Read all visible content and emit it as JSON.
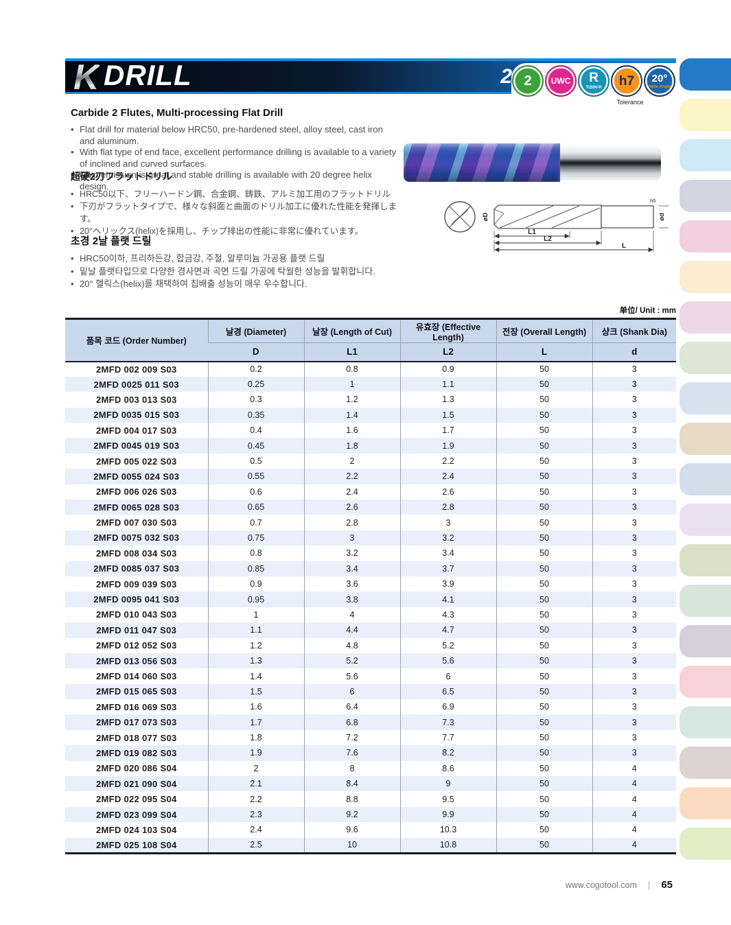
{
  "header": {
    "logo_k": "K",
    "logo_drill": "DRILL",
    "model": "2MFD",
    "tolerance_caption": "Tolerance",
    "badges": [
      {
        "name": "two-flutes-badge",
        "label": "2",
        "sub": "",
        "color": "#3ca23a",
        "ring": "#2e8e30",
        "text_color": "#ffffff",
        "sub_color": "",
        "label_size": "20px",
        "sub_size": "0"
      },
      {
        "name": "uwc-coating-badge",
        "label": "UWC",
        "sub": "",
        "color": "#e0268e",
        "ring": "#c01878",
        "text_color": "#ffffff",
        "sub_color": "",
        "label_size": "12px",
        "sub_size": "0"
      },
      {
        "name": "tisin-r-badge",
        "label": "R",
        "sub": "TiSiN-R",
        "color": "#1794b8",
        "ring": "#0f7ba0",
        "text_color": "#ffffff",
        "sub_color": "#ffffff",
        "label_size": "19px",
        "sub_size": "6.5px"
      },
      {
        "name": "h7-tolerance-badge",
        "label": "h7",
        "sub": "",
        "color": "#f6921e",
        "ring": "#1b3a66",
        "text_color": "#13315e",
        "sub_color": "",
        "label_size": "19px",
        "sub_size": "0"
      },
      {
        "name": "helix-angle-badge",
        "label": "20°",
        "sub": "Helix Angle",
        "color": "#1d64ae",
        "ring": "#16335e",
        "text_color": "#ffffff",
        "sub_color": "#f6921e",
        "label_size": "15px",
        "sub_size": "6px"
      }
    ]
  },
  "sections": {
    "english": {
      "title": "Carbide 2 Flutes, Multi-processing Flat Drill",
      "bullets": [
        "Flat drill for material below HRC50, pre-hardened steel, alloy steel, cast iron and aluminum.",
        "With flat type of end face, excellent performance drilling is available to a variety of inclined and curved surfaces.",
        "Chip emission is great and stable drilling is available with 20 degree helix design."
      ]
    },
    "japanese": {
      "title": "超硬2刃フラットドリル",
      "bullets": [
        "HRC50以下、フリーハードン鋼、合金鋼、鋳鉄、アルミ加工用のフラットドリル",
        "下刃がフラットタイプで、様々な斜面と曲面のドリル加工に優れた性能を発揮します。",
        "20°ヘリックス(helix)を採用し、チップ排出の性能に非常に優れています。"
      ]
    },
    "korean": {
      "title": "초경 2날 플랫 드릴",
      "bullets": [
        "HRC50이하, 프리하든강, 합금강, 주철, 알루미늄 가공용 플랫 드릴",
        "밑날 플랫타입으로 다양한 경사면과 곡면 드릴 가공에 탁월한 성능을 발휘합니다.",
        "20° 헬릭스(helix)를 채택하여 칩배출 성능이 매우 우수합니다."
      ]
    }
  },
  "diagram": {
    "labels": {
      "d_big": "øD",
      "h5": "h5",
      "d_small": "ød",
      "l1": "L1",
      "l2": "L2",
      "l": "L"
    }
  },
  "table": {
    "unit_label": "单位/  Unit : mm",
    "columns": [
      {
        "title": "품목 코드  (Order Number)",
        "symbol": ""
      },
      {
        "title": "날경  (Diameter)",
        "symbol": "D"
      },
      {
        "title": "날장  (Length of Cut)",
        "symbol": "L1"
      },
      {
        "title": "유효장 (Effective Length)",
        "symbol": "L2"
      },
      {
        "title": "전장  (Overall Length)",
        "symbol": "L"
      },
      {
        "title": "샹크  (Shank Dia)",
        "symbol": "d"
      }
    ],
    "rows": [
      [
        "2MFD 002 009 S03",
        "0.2",
        "0.8",
        "0.9",
        "50",
        "3"
      ],
      [
        "2MFD 0025 011 S03",
        "0.25",
        "1",
        "1.1",
        "50",
        "3"
      ],
      [
        "2MFD 003 013 S03",
        "0.3",
        "1.2",
        "1.3",
        "50",
        "3"
      ],
      [
        "2MFD 0035 015 S03",
        "0.35",
        "1.4",
        "1.5",
        "50",
        "3"
      ],
      [
        "2MFD 004 017 S03",
        "0.4",
        "1.6",
        "1.7",
        "50",
        "3"
      ],
      [
        "2MFD 0045 019 S03",
        "0.45",
        "1.8",
        "1.9",
        "50",
        "3"
      ],
      [
        "2MFD 005 022 S03",
        "0.5",
        "2",
        "2.2",
        "50",
        "3"
      ],
      [
        "2MFD 0055 024 S03",
        "0.55",
        "2.2",
        "2.4",
        "50",
        "3"
      ],
      [
        "2MFD 006 026 S03",
        "0.6",
        "2.4",
        "2.6",
        "50",
        "3"
      ],
      [
        "2MFD 0065 028 S03",
        "0.65",
        "2.6",
        "2.8",
        "50",
        "3"
      ],
      [
        "2MFD 007 030 S03",
        "0.7",
        "2.8",
        "3",
        "50",
        "3"
      ],
      [
        "2MFD 0075 032 S03",
        "0.75",
        "3",
        "3.2",
        "50",
        "3"
      ],
      [
        "2MFD 008 034 S03",
        "0.8",
        "3.2",
        "3.4",
        "50",
        "3"
      ],
      [
        "2MFD 0085 037 S03",
        "0.85",
        "3.4",
        "3.7",
        "50",
        "3"
      ],
      [
        "2MFD 009 039 S03",
        "0.9",
        "3.6",
        "3.9",
        "50",
        "3"
      ],
      [
        "2MFD 0095 041 S03",
        "0.95",
        "3.8",
        "4.1",
        "50",
        "3"
      ],
      [
        "2MFD 010 043 S03",
        "1",
        "4",
        "4.3",
        "50",
        "3"
      ],
      [
        "2MFD 011 047 S03",
        "1.1",
        "4.4",
        "4.7",
        "50",
        "3"
      ],
      [
        "2MFD 012 052 S03",
        "1.2",
        "4.8",
        "5.2",
        "50",
        "3"
      ],
      [
        "2MFD 013 056 S03",
        "1.3",
        "5.2",
        "5.6",
        "50",
        "3"
      ],
      [
        "2MFD 014 060 S03",
        "1.4",
        "5.6",
        "6",
        "50",
        "3"
      ],
      [
        "2MFD 015 065 S03",
        "1.5",
        "6",
        "6.5",
        "50",
        "3"
      ],
      [
        "2MFD 016 069 S03",
        "1.6",
        "6.4",
        "6.9",
        "50",
        "3"
      ],
      [
        "2MFD 017 073 S03",
        "1.7",
        "6.8",
        "7.3",
        "50",
        "3"
      ],
      [
        "2MFD 018 077 S03",
        "1.8",
        "7.2",
        "7.7",
        "50",
        "3"
      ],
      [
        "2MFD 019 082 S03",
        "1.9",
        "7.6",
        "8.2",
        "50",
        "3"
      ],
      [
        "2MFD 020 086 S04",
        "2",
        "8",
        "8.6",
        "50",
        "4"
      ],
      [
        "2MFD 021 090 S04",
        "2.1",
        "8.4",
        "9",
        "50",
        "4"
      ],
      [
        "2MFD 022 095 S04",
        "2.2",
        "8.8",
        "9.5",
        "50",
        "4"
      ],
      [
        "2MFD 023 099 S04",
        "2.3",
        "9.2",
        "9.9",
        "50",
        "4"
      ],
      [
        "2MFD 024 103 S04",
        "2.4",
        "9.6",
        "10.3",
        "50",
        "4"
      ],
      [
        "2MFD 025 108 S04",
        "2.5",
        "10",
        "10.8",
        "50",
        "4"
      ]
    ]
  },
  "footer": {
    "website": "www.cogotool.com",
    "divider": "|",
    "page_number": "65"
  },
  "side_tabs": {
    "colors": [
      "#2579c8",
      "#fcf5c5",
      "#cfe9f6",
      "#d3d5e0",
      "#f3cfdf",
      "#f9ecd0",
      "#edd8e9",
      "#dce7d6",
      "#d6e3ef",
      "#e7dbc6",
      "#d3deea",
      "#ebdff2",
      "#dbdfc6",
      "#d6e7da",
      "#d6cedb",
      "#f7d2d6",
      "#d6e7e2",
      "#ddd3d2",
      "#fbdac2",
      "#e3eec6"
    ]
  }
}
